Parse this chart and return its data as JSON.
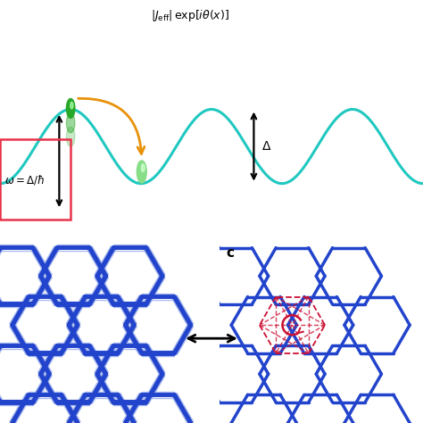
{
  "bg_color": "#ffffff",
  "wave_color": "#20c8c0",
  "wave_amplitude": 0.38,
  "arrow_orange": "#e8920a",
  "ball_green_dark": "#28a828",
  "ball_green_light": "#88dd88",
  "box_color": "#e8324a",
  "blue_hex": "#2244cc",
  "blue_hex_light": "#aabbee",
  "red_arrow": "#cc1133",
  "label_c": "c"
}
